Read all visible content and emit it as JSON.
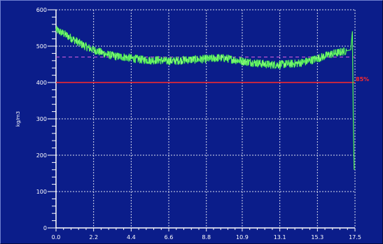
{
  "chart_data": {
    "type": "line",
    "title": "",
    "xlabel": "",
    "ylabel": "kg/m3",
    "xlim": [
      0.0,
      17.5
    ],
    "ylim": [
      0,
      600
    ],
    "x_ticks": [
      "0.0",
      "2.2",
      "4.4",
      "6.6",
      "8.8",
      "10.9",
      "13.1",
      "15.3",
      "17.5"
    ],
    "y_ticks": [
      "0",
      "100",
      "200",
      "300",
      "400",
      "500",
      "600"
    ],
    "grid": true,
    "colors": {
      "background": "#0b1d8a",
      "grid": "#ffffff",
      "axes": "#ffffff",
      "series": "#22e03a",
      "series_highlight": "#b8ff9a",
      "reference": "#ff2a2a",
      "mean": "#e060e0"
    },
    "series": [
      {
        "x": [
          0.0,
          0.5,
          1.0,
          1.5,
          2.0,
          2.5,
          3.0,
          3.5,
          4.0,
          4.5,
          5.0,
          5.5,
          6.0,
          6.5,
          7.0,
          7.5,
          8.0,
          8.5,
          9.0,
          9.5,
          10.0,
          10.5,
          11.0,
          11.5,
          12.0,
          12.5,
          13.0,
          13.5,
          14.0,
          14.5,
          15.0,
          15.5,
          16.0,
          16.5,
          17.0,
          17.25,
          17.35,
          17.4,
          17.45
        ],
        "y": [
          545,
          533,
          519,
          505,
          493,
          485,
          477,
          472,
          470,
          466,
          463,
          461,
          462,
          459,
          460,
          462,
          463,
          464,
          465,
          468,
          466,
          462,
          458,
          455,
          452,
          449,
          449,
          451,
          452,
          456,
          462,
          469,
          477,
          482,
          487,
          490,
          540,
          300,
          160
        ]
      }
    ],
    "reference_lines": [
      {
        "y": 400,
        "label": "85%"
      },
      {
        "y": 470,
        "label": ""
      }
    ]
  }
}
